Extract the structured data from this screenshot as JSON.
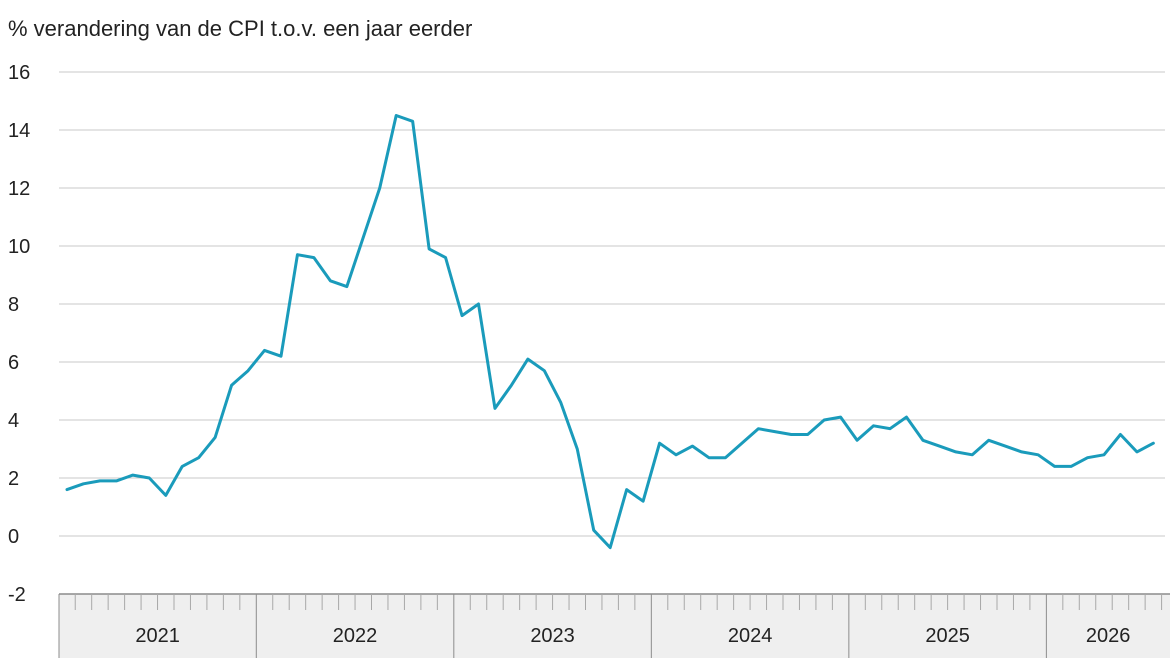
{
  "chart_data": {
    "type": "line",
    "title": "",
    "ylabel": "% verandering van de CPI t.o.v. een jaar eerder",
    "xlabel": "",
    "ylim": [
      -2,
      16
    ],
    "yticks": [
      "16",
      "14",
      "12",
      "10",
      "8",
      "6",
      "4",
      "2",
      "0",
      "-2"
    ],
    "grid": true,
    "legend": "none",
    "years": [
      "2021",
      "2022",
      "2023",
      "2024",
      "2025",
      "2026"
    ],
    "x_start": "2021-01",
    "x_months_shown": 67,
    "line_color": "#1a9bbb",
    "series": [
      {
        "values": [
          1.6,
          1.8,
          1.9,
          1.9,
          2.1,
          2.0,
          1.4,
          2.4,
          2.7,
          3.4,
          5.2,
          5.7,
          6.4,
          6.2,
          9.7,
          9.6,
          8.8,
          8.6,
          10.3,
          12.0,
          14.5,
          14.3,
          9.9,
          9.6,
          7.6,
          8.0,
          4.4,
          5.2,
          6.1,
          5.7,
          4.6,
          3.0,
          0.2,
          -0.4,
          1.6,
          1.2,
          3.2,
          2.8,
          3.1,
          2.7,
          2.7,
          3.2,
          3.7,
          3.6,
          3.5,
          3.5,
          4.0,
          4.1,
          3.3,
          3.8,
          3.7,
          4.1,
          3.3,
          3.1,
          2.9,
          2.8,
          3.3,
          3.1,
          2.9,
          2.8,
          2.4,
          2.4,
          2.7,
          2.8,
          3.5,
          2.9,
          3.2
        ]
      }
    ]
  }
}
